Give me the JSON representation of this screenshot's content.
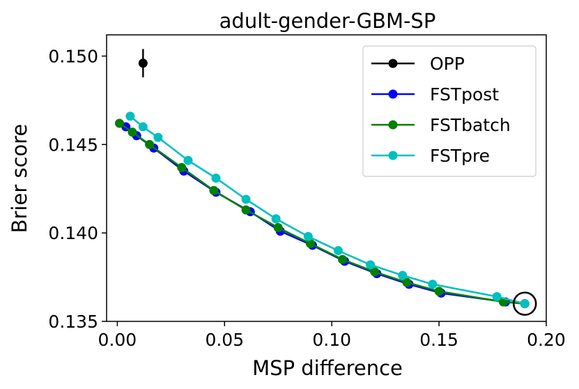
{
  "chart_data": {
    "type": "line",
    "title": "adult-gender-GBM-SP",
    "xlabel": "MSP difference",
    "ylabel": "Brier score",
    "xlim": [
      -0.005,
      0.2
    ],
    "ylim": [
      0.135,
      0.1512
    ],
    "xticks": [
      0.0,
      0.05,
      0.1,
      0.15,
      0.2
    ],
    "xtick_labels": [
      "0.00",
      "0.05",
      "0.10",
      "0.15",
      "0.20"
    ],
    "yticks": [
      0.135,
      0.14,
      0.145,
      0.15
    ],
    "ytick_labels": [
      "0.135",
      "0.140",
      "0.145",
      "0.150"
    ],
    "legend_position": "upper right",
    "series": [
      {
        "name": "OPP",
        "color": "#000000",
        "x": [
          0.012
        ],
        "y": [
          0.1496
        ],
        "yerr": [
          0.0008
        ]
      },
      {
        "name": "FSTpost",
        "color": "#0000ff",
        "x": [
          0.004,
          0.009,
          0.017,
          0.031,
          0.046,
          0.062,
          0.076,
          0.091,
          0.106,
          0.121,
          0.136,
          0.151,
          0.181,
          0.19
        ],
        "y": [
          0.146,
          0.1455,
          0.1448,
          0.1435,
          0.1423,
          0.1412,
          0.1401,
          0.1393,
          0.1384,
          0.1377,
          0.1371,
          0.1366,
          0.1361,
          0.136
        ]
      },
      {
        "name": "FSTbatch",
        "color": "#008000",
        "x": [
          0.001,
          0.007,
          0.015,
          0.03,
          0.045,
          0.06,
          0.075,
          0.09,
          0.105,
          0.12,
          0.135,
          0.15,
          0.18,
          0.19
        ],
        "y": [
          0.1462,
          0.1457,
          0.145,
          0.1437,
          0.1424,
          0.1413,
          0.1403,
          0.1394,
          0.1385,
          0.1378,
          0.1372,
          0.1367,
          0.1361,
          0.136
        ]
      },
      {
        "name": "FSTpre",
        "color": "#00bfbf",
        "x": [
          0.006,
          0.012,
          0.019,
          0.033,
          0.046,
          0.06,
          0.074,
          0.089,
          0.103,
          0.118,
          0.133,
          0.147,
          0.177,
          0.19
        ],
        "y": [
          0.1466,
          0.146,
          0.1454,
          0.1441,
          0.1431,
          0.1419,
          0.1408,
          0.1398,
          0.139,
          0.1382,
          0.1376,
          0.1371,
          0.1364,
          0.136
        ]
      }
    ],
    "annotations": [
      {
        "type": "circle-marker",
        "x": 0.19,
        "y": 0.136,
        "color": "#000000"
      }
    ]
  }
}
